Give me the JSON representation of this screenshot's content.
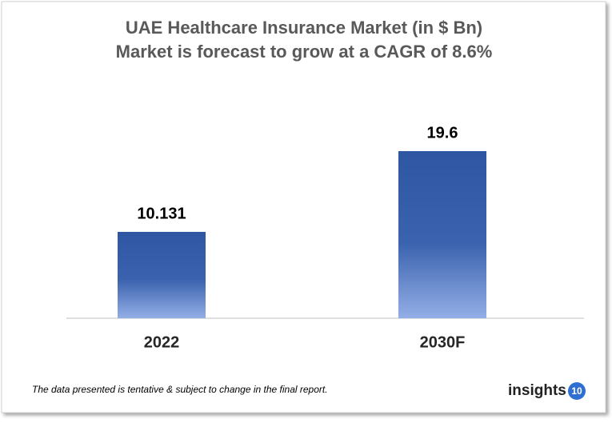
{
  "chart_data": {
    "type": "bar",
    "title": "UAE Healthcare Insurance Market (in $ Bn)",
    "subtitle": "Market is forecast to grow at a CAGR of 8.6%",
    "categories": [
      "2022",
      "2030F"
    ],
    "values": [
      10.131,
      19.6
    ],
    "color": "#2f56a2"
  },
  "footnote": "The data presented is tentative & subject to change in the final report.",
  "logo": {
    "text": "insights",
    "badge": "10"
  }
}
